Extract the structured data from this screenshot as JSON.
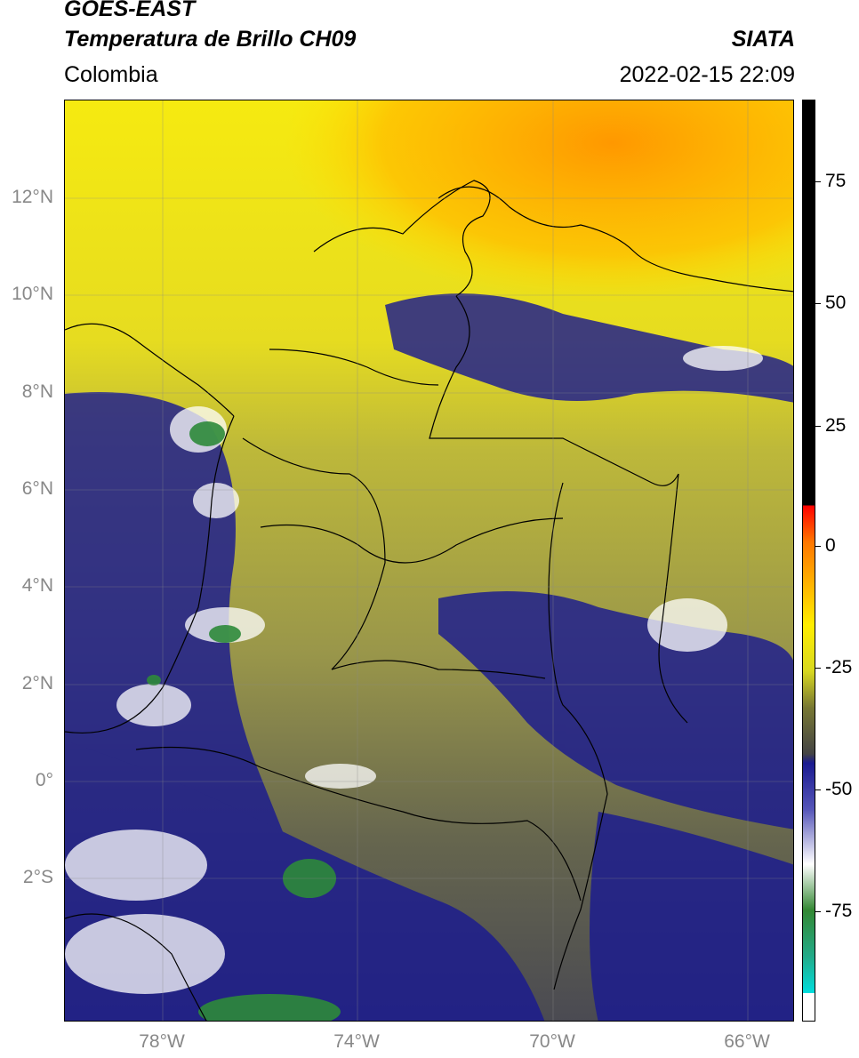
{
  "title": {
    "satellite": "GOES-EAST",
    "product": "Temperatura de Brillo CH09",
    "agency": "SIATA",
    "region": "Colombia",
    "datetime": "2022-02-15 22:09"
  },
  "map": {
    "lat_labels": [
      "12°N",
      "10°N",
      "8°N",
      "6°N",
      "4°N",
      "2°N",
      "0°",
      "2°S"
    ],
    "lon_labels": [
      "78°W",
      "74°W",
      "70°W",
      "66°W"
    ],
    "gridlines": true
  },
  "colorbar": {
    "tick_labels": [
      "75",
      "50",
      "25",
      "0",
      "-25",
      "-50",
      "-75"
    ]
  },
  "colors": {
    "warm_sea": "#ffa500",
    "yellow": "#ffee00",
    "olive": "#a8a838",
    "cold_blue": "#1a1a90",
    "coldest_green": "#338833",
    "cyan": "#00dddd"
  }
}
